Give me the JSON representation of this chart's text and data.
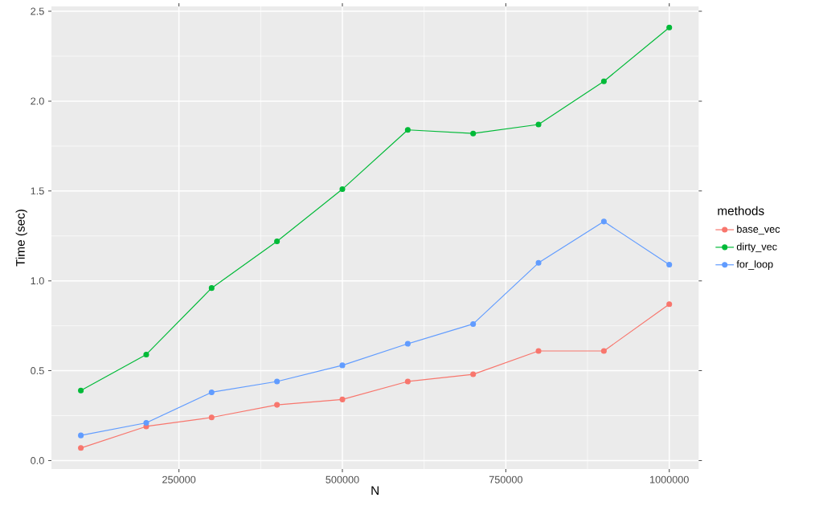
{
  "chart_data": {
    "type": "line",
    "xlabel": "N",
    "ylabel": "Time (sec)",
    "legend_title": "methods",
    "x": [
      100000,
      200000,
      300000,
      400000,
      500000,
      600000,
      700000,
      800000,
      900000,
      1000000
    ],
    "series": [
      {
        "name": "base_vec",
        "color": "#f8766d",
        "values": [
          0.07,
          0.19,
          0.24,
          0.31,
          0.34,
          0.44,
          0.48,
          0.61,
          0.61,
          0.87
        ]
      },
      {
        "name": "dirty_vec",
        "color": "#00ba38",
        "values": [
          0.39,
          0.59,
          0.96,
          1.22,
          1.51,
          1.84,
          1.82,
          1.87,
          2.11,
          2.41
        ]
      },
      {
        "name": "for_loop",
        "color": "#619cff",
        "values": [
          0.14,
          0.21,
          0.38,
          0.44,
          0.53,
          0.65,
          0.76,
          1.1,
          1.33,
          1.09
        ]
      }
    ],
    "xlim": [
      55000,
      1045000
    ],
    "ylim": [
      -0.047,
      2.527
    ],
    "xticks": [
      250000,
      500000,
      750000,
      1000000
    ],
    "yticks": [
      {
        "value": 0,
        "label": "0.0"
      },
      0.5,
      {
        "value": 1,
        "label": "1.0"
      },
      1.5,
      {
        "value": 2,
        "label": "2.0"
      },
      2.5
    ],
    "grid": true,
    "legend": "right",
    "marker": "circle",
    "line_style": "solid"
  }
}
